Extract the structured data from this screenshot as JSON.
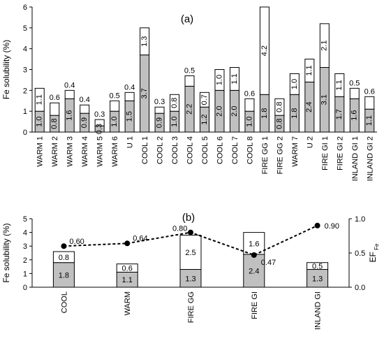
{
  "chart_data": [
    {
      "type": "bar",
      "stacked": true,
      "panel_label": "(a)",
      "ylabel": "Fe solubility (%)",
      "ylim": [
        0,
        6
      ],
      "yticks": [
        0,
        1,
        2,
        3,
        4,
        5,
        6
      ],
      "categories": [
        "WARM 1",
        "WARM 2",
        "WARM 3",
        "WARM 4",
        "WARM 5",
        "WARM 6",
        "U 1",
        "COOL 1",
        "COOL 2",
        "COOL 3",
        "COOL 4",
        "COOL 5",
        "COOL 6",
        "COOL 7",
        "COOL 8",
        "FIRE GG 1",
        "FIRE GG 2",
        "WARM 7",
        "U 2",
        "FIRE GI 1",
        "FIRE GI 2",
        "INLAND GI 1",
        "INLAND GI 2"
      ],
      "series": [
        {
          "values": [
            1.0,
            0.8,
            1.6,
            0.9,
            0.3,
            1.0,
            1.5,
            3.7,
            0.9,
            1.0,
            2.2,
            1.2,
            2.0,
            2.0,
            1.0,
            1.8,
            0.8,
            1.8,
            2.4,
            3.1,
            1.7,
            1.6,
            1.1
          ],
          "color": "#c0c0c0"
        },
        {
          "values": [
            1.1,
            0.6,
            0.4,
            0.4,
            0.3,
            0.5,
            0.4,
            1.3,
            0.3,
            0.8,
            0.5,
            0.7,
            1.0,
            1.1,
            0.6,
            4.2,
            0.8,
            1.0,
            1.1,
            2.1,
            1.1,
            0.5,
            0.6
          ],
          "color": "#ffffff"
        }
      ],
      "bottom_labels": [
        "1.0",
        "0.8",
        "1.6",
        "0.9",
        "0.3",
        "1.0",
        "1.5",
        "3.7",
        "0.9",
        "1.0",
        "2.2",
        "1.2",
        "2.0",
        "2.0",
        "1.0",
        "1.8",
        "0.8",
        "1.8",
        "2.4",
        "3.1",
        "1.7",
        "1.6",
        "1.1"
      ],
      "top_labels": [
        "1.1",
        "0.6",
        "0.4",
        "0.4",
        "0.3",
        "0.5",
        "0.4",
        "1.3",
        "0.3",
        "0.8",
        "0.5",
        "0.7",
        "1.0",
        "1.1",
        "0.6",
        "4.2",
        "0.8",
        "1.0",
        "1.1",
        "2.1",
        "1.1",
        "0.5",
        "0.6"
      ]
    },
    {
      "type": "bar",
      "stacked": true,
      "panel_label": "(b)",
      "ylabel": "Fe solubility (%)",
      "ylim": [
        0,
        5
      ],
      "yticks": [
        0,
        1,
        2,
        3,
        4,
        5
      ],
      "categories": [
        "COOL",
        "WARM",
        "FIRE GG",
        "FIRE GI",
        "INLAND GI"
      ],
      "series": [
        {
          "values": [
            1.8,
            1.1,
            1.3,
            2.4,
            1.3
          ],
          "color": "#c0c0c0"
        },
        {
          "values": [
            0.8,
            0.6,
            2.5,
            1.6,
            0.5
          ],
          "color": "#ffffff"
        }
      ],
      "bottom_labels": [
        "1.8",
        "1.1",
        "1.3",
        "2.4",
        "1.3"
      ],
      "top_labels": [
        "0.8",
        "0.6",
        "2.5",
        "1.6",
        "0.5"
      ],
      "line": {
        "type": "line",
        "style": "dashed",
        "values": [
          0.6,
          0.64,
          0.8,
          0.47,
          0.9
        ],
        "labels": [
          "0.60",
          "0.64",
          "0.80",
          "0.47",
          "0.90"
        ],
        "y2label_main": "EF",
        "y2label_sub": "Fe",
        "y2lim": [
          0,
          1.0
        ],
        "y2ticks": [
          "0.0",
          "0.5",
          "1.0"
        ]
      }
    }
  ]
}
